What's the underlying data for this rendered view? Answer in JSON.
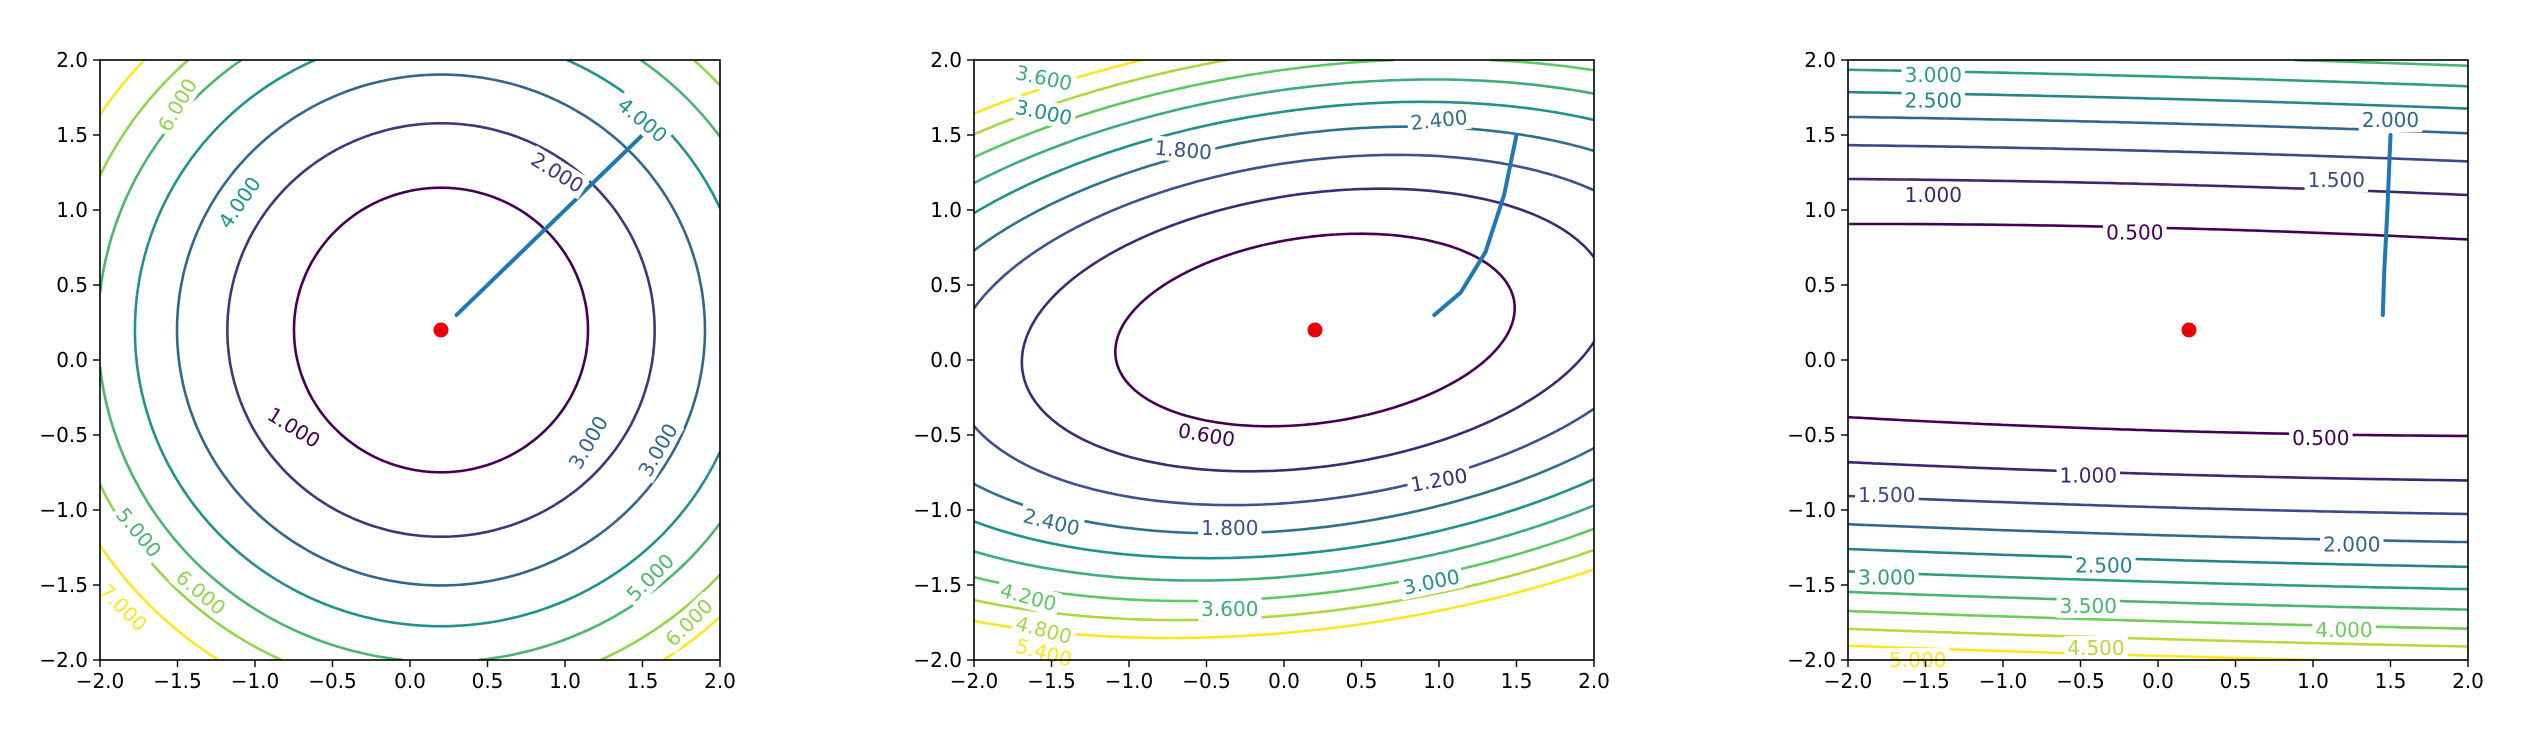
{
  "chart_data": [
    {
      "type": "contour",
      "title": "",
      "xlabel": "",
      "ylabel": "",
      "xlim": [
        -2.0,
        2.0
      ],
      "ylim": [
        -2.0,
        2.0
      ],
      "x_ticks": [
        "−2.0",
        "−1.5",
        "−1.0",
        "−0.5",
        "0.0",
        "0.5",
        "1.0",
        "1.5",
        "2.0"
      ],
      "y_ticks": [
        "−2.0",
        "−1.5",
        "−1.0",
        "−0.5",
        "0.0",
        "0.5",
        "1.0",
        "1.5",
        "2.0"
      ],
      "minimum_marker": {
        "x": 0.2,
        "y": 0.2,
        "color": "#e8000b"
      },
      "path": {
        "color": "#1f77b4",
        "points": [
          [
            1.5,
            1.5
          ],
          [
            0.3,
            0.3
          ]
        ]
      },
      "contour_levels": [
        1,
        2,
        3,
        4,
        5,
        6,
        7
      ],
      "contour_labels": [
        "1.000",
        "2.000",
        "3.000",
        "4.000",
        "5.000",
        "6.000",
        "7.000",
        "4.000",
        "3.000",
        "5.000",
        "6.000",
        "6.000"
      ]
    },
    {
      "type": "contour",
      "title": "",
      "xlabel": "",
      "ylabel": "",
      "xlim": [
        -2.0,
        2.0
      ],
      "ylim": [
        -2.0,
        2.0
      ],
      "x_ticks": [
        "−2.0",
        "−1.5",
        "−1.0",
        "−0.5",
        "0.0",
        "0.5",
        "1.0",
        "1.5",
        "2.0"
      ],
      "y_ticks": [
        "−2.0",
        "−1.5",
        "−1.0",
        "−0.5",
        "0.0",
        "0.5",
        "1.0",
        "1.5",
        "2.0"
      ],
      "minimum_marker": {
        "x": 0.2,
        "y": 0.2,
        "color": "#e8000b"
      },
      "path": {
        "color": "#1f77b4",
        "points": [
          [
            1.5,
            1.5
          ],
          [
            1.42,
            1.1
          ],
          [
            1.3,
            0.72
          ],
          [
            1.14,
            0.45
          ],
          [
            0.97,
            0.3
          ]
        ]
      },
      "contour_levels": [
        0.6,
        1.2,
        1.8,
        2.4,
        3.0,
        3.6,
        4.2,
        4.8,
        5.4
      ],
      "contour_labels": [
        "0.600",
        "1.200",
        "1.800",
        "2.400",
        "3.000",
        "3.600",
        "4.200",
        "4.800",
        "5.400",
        "1.800",
        "2.400",
        "3.000",
        "3.600"
      ]
    },
    {
      "type": "contour",
      "title": "",
      "xlabel": "",
      "ylabel": "",
      "xlim": [
        -2.0,
        2.0
      ],
      "ylim": [
        -2.0,
        2.0
      ],
      "x_ticks": [
        "−2.0",
        "−1.5",
        "−1.0",
        "−0.5",
        "0.0",
        "0.5",
        "1.0",
        "1.5",
        "2.0"
      ],
      "y_ticks": [
        "−2.0",
        "−1.5",
        "−1.0",
        "−0.5",
        "0.0",
        "0.5",
        "1.0",
        "1.5",
        "2.0"
      ],
      "minimum_marker": {
        "x": 0.2,
        "y": 0.2,
        "color": "#e8000b"
      },
      "path": {
        "color": "#1f77b4",
        "points": [
          [
            1.5,
            1.5
          ],
          [
            1.48,
            1.0
          ],
          [
            1.46,
            0.6
          ],
          [
            1.45,
            0.3
          ]
        ]
      },
      "contour_levels": [
        0.5,
        1.0,
        1.5,
        2.0,
        2.5,
        3.0,
        3.5,
        4.0,
        4.5,
        5.0
      ],
      "contour_labels": [
        "0.500",
        "1.000",
        "1.500",
        "2.000",
        "2.500",
        "3.000",
        "0.500",
        "1.000",
        "1.500",
        "2.000",
        "2.500",
        "3.000",
        "3.500",
        "4.000",
        "4.500",
        "5.000"
      ]
    }
  ]
}
